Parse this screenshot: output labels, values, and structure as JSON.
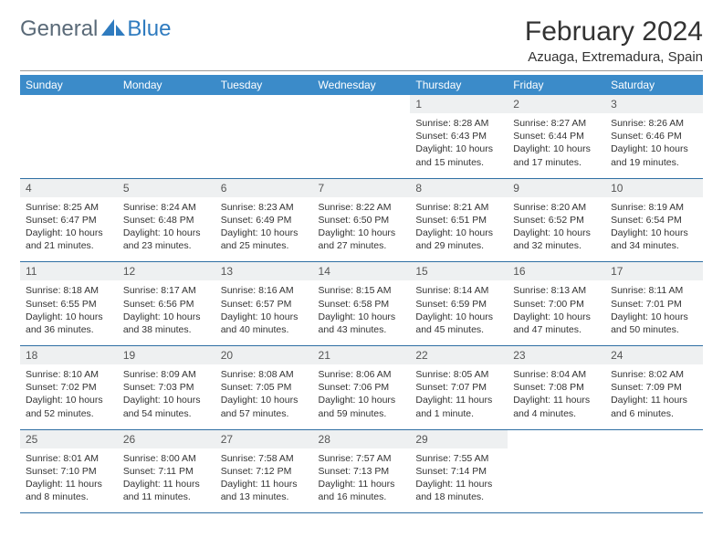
{
  "logo": {
    "part1": "General",
    "part2": "Blue"
  },
  "title": "February 2024",
  "location": "Azuaga, Extremadura, Spain",
  "colors": {
    "header_bg": "#3b8bc9",
    "header_text": "#ffffff",
    "daynum_bg": "#eef0f1",
    "row_border": "#2f6fa3",
    "logo_gray": "#5a6a78",
    "logo_blue": "#2f7bbf"
  },
  "weekdays": [
    "Sunday",
    "Monday",
    "Tuesday",
    "Wednesday",
    "Thursday",
    "Friday",
    "Saturday"
  ],
  "weeks": [
    [
      {
        "blank": true
      },
      {
        "blank": true
      },
      {
        "blank": true
      },
      {
        "blank": true
      },
      {
        "num": "1",
        "sunrise": "8:28 AM",
        "sunset": "6:43 PM",
        "daylight": "10 hours and 15 minutes."
      },
      {
        "num": "2",
        "sunrise": "8:27 AM",
        "sunset": "6:44 PM",
        "daylight": "10 hours and 17 minutes."
      },
      {
        "num": "3",
        "sunrise": "8:26 AM",
        "sunset": "6:46 PM",
        "daylight": "10 hours and 19 minutes."
      }
    ],
    [
      {
        "num": "4",
        "sunrise": "8:25 AM",
        "sunset": "6:47 PM",
        "daylight": "10 hours and 21 minutes."
      },
      {
        "num": "5",
        "sunrise": "8:24 AM",
        "sunset": "6:48 PM",
        "daylight": "10 hours and 23 minutes."
      },
      {
        "num": "6",
        "sunrise": "8:23 AM",
        "sunset": "6:49 PM",
        "daylight": "10 hours and 25 minutes."
      },
      {
        "num": "7",
        "sunrise": "8:22 AM",
        "sunset": "6:50 PM",
        "daylight": "10 hours and 27 minutes."
      },
      {
        "num": "8",
        "sunrise": "8:21 AM",
        "sunset": "6:51 PM",
        "daylight": "10 hours and 29 minutes."
      },
      {
        "num": "9",
        "sunrise": "8:20 AM",
        "sunset": "6:52 PM",
        "daylight": "10 hours and 32 minutes."
      },
      {
        "num": "10",
        "sunrise": "8:19 AM",
        "sunset": "6:54 PM",
        "daylight": "10 hours and 34 minutes."
      }
    ],
    [
      {
        "num": "11",
        "sunrise": "8:18 AM",
        "sunset": "6:55 PM",
        "daylight": "10 hours and 36 minutes."
      },
      {
        "num": "12",
        "sunrise": "8:17 AM",
        "sunset": "6:56 PM",
        "daylight": "10 hours and 38 minutes."
      },
      {
        "num": "13",
        "sunrise": "8:16 AM",
        "sunset": "6:57 PM",
        "daylight": "10 hours and 40 minutes."
      },
      {
        "num": "14",
        "sunrise": "8:15 AM",
        "sunset": "6:58 PM",
        "daylight": "10 hours and 43 minutes."
      },
      {
        "num": "15",
        "sunrise": "8:14 AM",
        "sunset": "6:59 PM",
        "daylight": "10 hours and 45 minutes."
      },
      {
        "num": "16",
        "sunrise": "8:13 AM",
        "sunset": "7:00 PM",
        "daylight": "10 hours and 47 minutes."
      },
      {
        "num": "17",
        "sunrise": "8:11 AM",
        "sunset": "7:01 PM",
        "daylight": "10 hours and 50 minutes."
      }
    ],
    [
      {
        "num": "18",
        "sunrise": "8:10 AM",
        "sunset": "7:02 PM",
        "daylight": "10 hours and 52 minutes."
      },
      {
        "num": "19",
        "sunrise": "8:09 AM",
        "sunset": "7:03 PM",
        "daylight": "10 hours and 54 minutes."
      },
      {
        "num": "20",
        "sunrise": "8:08 AM",
        "sunset": "7:05 PM",
        "daylight": "10 hours and 57 minutes."
      },
      {
        "num": "21",
        "sunrise": "8:06 AM",
        "sunset": "7:06 PM",
        "daylight": "10 hours and 59 minutes."
      },
      {
        "num": "22",
        "sunrise": "8:05 AM",
        "sunset": "7:07 PM",
        "daylight": "11 hours and 1 minute."
      },
      {
        "num": "23",
        "sunrise": "8:04 AM",
        "sunset": "7:08 PM",
        "daylight": "11 hours and 4 minutes."
      },
      {
        "num": "24",
        "sunrise": "8:02 AM",
        "sunset": "7:09 PM",
        "daylight": "11 hours and 6 minutes."
      }
    ],
    [
      {
        "num": "25",
        "sunrise": "8:01 AM",
        "sunset": "7:10 PM",
        "daylight": "11 hours and 8 minutes."
      },
      {
        "num": "26",
        "sunrise": "8:00 AM",
        "sunset": "7:11 PM",
        "daylight": "11 hours and 11 minutes."
      },
      {
        "num": "27",
        "sunrise": "7:58 AM",
        "sunset": "7:12 PM",
        "daylight": "11 hours and 13 minutes."
      },
      {
        "num": "28",
        "sunrise": "7:57 AM",
        "sunset": "7:13 PM",
        "daylight": "11 hours and 16 minutes."
      },
      {
        "num": "29",
        "sunrise": "7:55 AM",
        "sunset": "7:14 PM",
        "daylight": "11 hours and 18 minutes."
      },
      {
        "blank": true
      },
      {
        "blank": true
      }
    ]
  ],
  "labels": {
    "sunrise": "Sunrise: ",
    "sunset": "Sunset: ",
    "daylight": "Daylight: "
  }
}
